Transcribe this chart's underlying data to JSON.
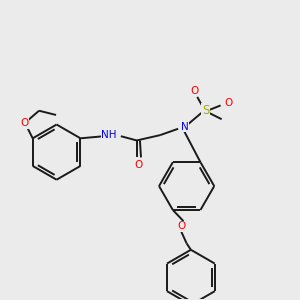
{
  "background_color": "#ebebeb",
  "bond_color": "#1a1a1a",
  "atom_colors": {
    "O": "#ff0000",
    "N": "#0000ee",
    "H": "#008080",
    "S": "#aaaa00",
    "C": "#1a1a1a"
  },
  "figsize": [
    3.0,
    3.0
  ],
  "dpi": 100,
  "lw": 1.4
}
